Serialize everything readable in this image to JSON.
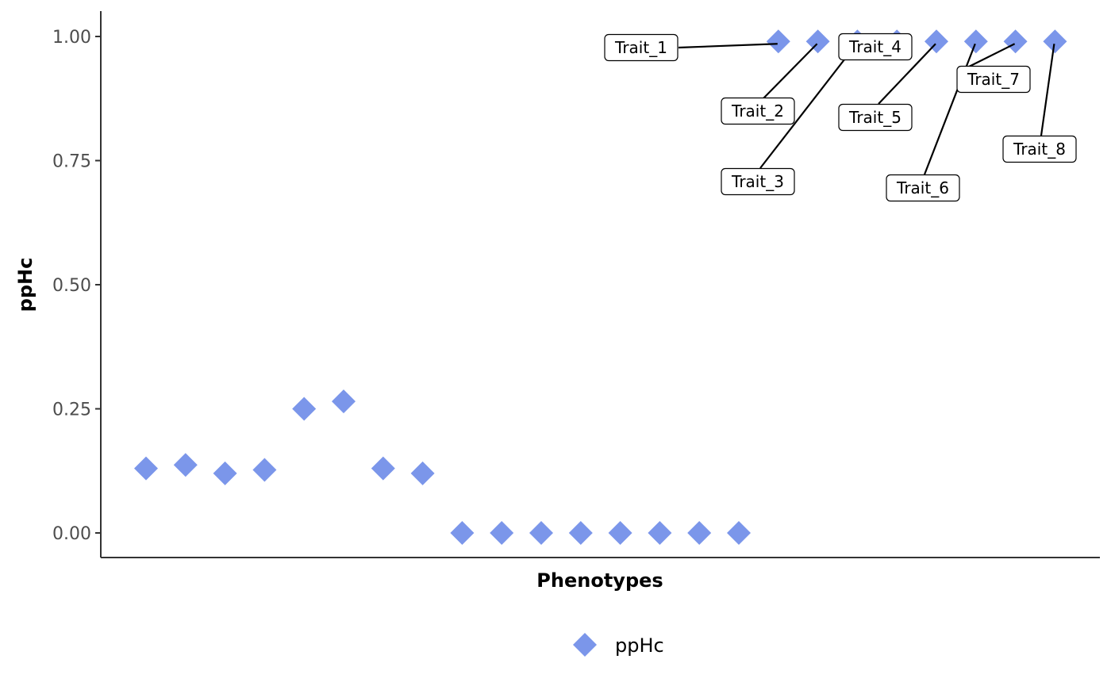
{
  "chart_data": {
    "type": "scatter",
    "xlabel": "Phenotypes",
    "ylabel": "ppHc",
    "ylim": [
      0,
      1
    ],
    "yticks": [
      "0.00",
      "0.25",
      "0.50",
      "0.75",
      "1.00"
    ],
    "grid": false,
    "legend_position": "bottom",
    "series": [
      {
        "name": "ppHc",
        "color": "#7b96ea",
        "marker": "diamond",
        "values": [
          0.13,
          0.137,
          0.12,
          0.127,
          0.25,
          0.265,
          0.13,
          0.12,
          0,
          0,
          0,
          0,
          0,
          0,
          0,
          0,
          0.99,
          0.99,
          0.99,
          0.99,
          0.99,
          0.99,
          0.99,
          0.99
        ],
        "labels": [
          "",
          "",
          "",
          "",
          "",
          "",
          "",
          "",
          "",
          "",
          "",
          "",
          "",
          "",
          "",
          "",
          "Trait_1",
          "Trait_2",
          "Trait_3",
          "Trait_4",
          "Trait_5",
          "Trait_6",
          "Trait_7",
          "Trait_8"
        ]
      }
    ]
  }
}
